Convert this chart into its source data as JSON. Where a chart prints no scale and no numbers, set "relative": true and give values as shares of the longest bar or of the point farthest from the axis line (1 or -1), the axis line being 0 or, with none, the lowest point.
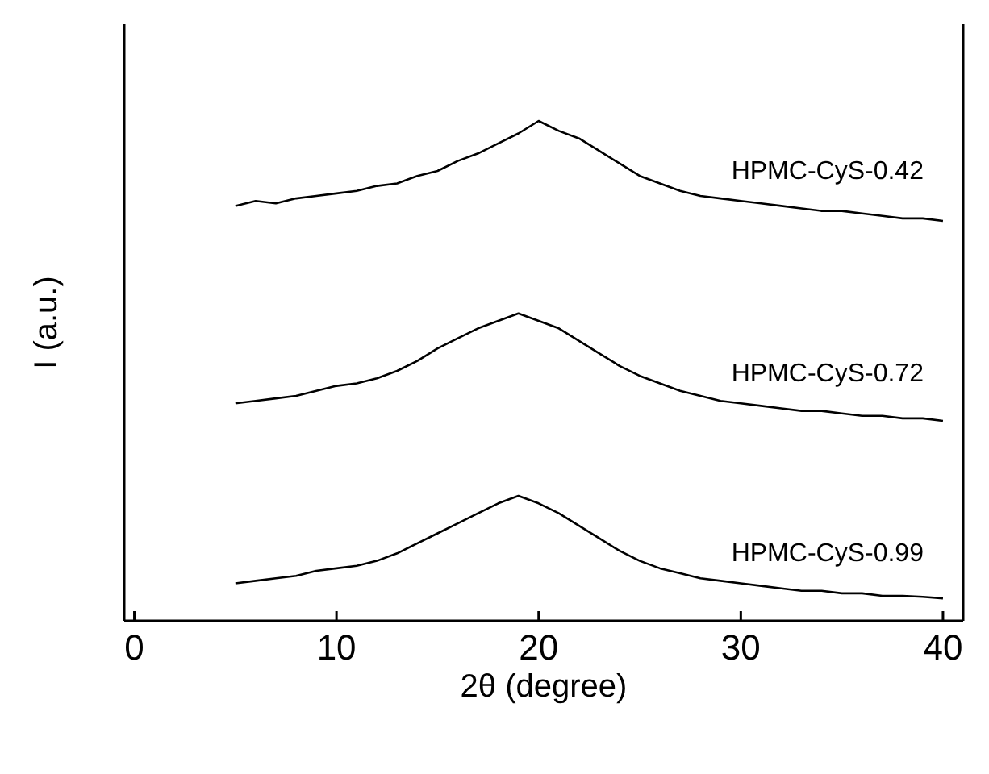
{
  "chart_data": {
    "type": "line",
    "relative": true,
    "xlabel": "2θ (degree)",
    "ylabel": "I (a.u.)",
    "xlim": [
      -0.5,
      41
    ],
    "xticks": [
      0,
      10,
      20,
      30,
      40
    ],
    "grid": false,
    "legend": false,
    "marker": "none",
    "line_style": "solid",
    "x": [
      5,
      6,
      7,
      8,
      9,
      10,
      11,
      12,
      13,
      14,
      15,
      16,
      17,
      18,
      19,
      20,
      21,
      22,
      23,
      24,
      25,
      26,
      27,
      28,
      29,
      30,
      31,
      32,
      33,
      34,
      35,
      36,
      37,
      38,
      39,
      40
    ],
    "series": [
      {
        "name": "HPMC-CyS-0.42",
        "color": "#000000",
        "values": [
          0.83,
          0.84,
          0.835,
          0.845,
          0.85,
          0.855,
          0.86,
          0.87,
          0.875,
          0.89,
          0.9,
          0.92,
          0.935,
          0.955,
          0.975,
          1.0,
          0.98,
          0.965,
          0.94,
          0.915,
          0.89,
          0.875,
          0.86,
          0.85,
          0.845,
          0.84,
          0.835,
          0.83,
          0.825,
          0.82,
          0.82,
          0.815,
          0.81,
          0.805,
          0.805,
          0.8
        ]
      },
      {
        "name": "HPMC-CyS-0.72",
        "color": "#000000",
        "values": [
          0.435,
          0.44,
          0.445,
          0.45,
          0.46,
          0.47,
          0.475,
          0.485,
          0.5,
          0.52,
          0.545,
          0.565,
          0.585,
          0.6,
          0.615,
          0.6,
          0.585,
          0.56,
          0.535,
          0.51,
          0.49,
          0.475,
          0.46,
          0.45,
          0.44,
          0.435,
          0.43,
          0.425,
          0.42,
          0.42,
          0.415,
          0.41,
          0.41,
          0.405,
          0.405,
          0.4
        ]
      },
      {
        "name": "HPMC-CyS-0.99",
        "color": "#000000",
        "values": [
          0.075,
          0.08,
          0.085,
          0.09,
          0.1,
          0.105,
          0.11,
          0.12,
          0.135,
          0.155,
          0.175,
          0.195,
          0.215,
          0.235,
          0.25,
          0.235,
          0.215,
          0.19,
          0.165,
          0.14,
          0.12,
          0.105,
          0.095,
          0.085,
          0.08,
          0.075,
          0.07,
          0.065,
          0.06,
          0.06,
          0.055,
          0.055,
          0.05,
          0.05,
          0.048,
          0.045
        ]
      }
    ]
  }
}
